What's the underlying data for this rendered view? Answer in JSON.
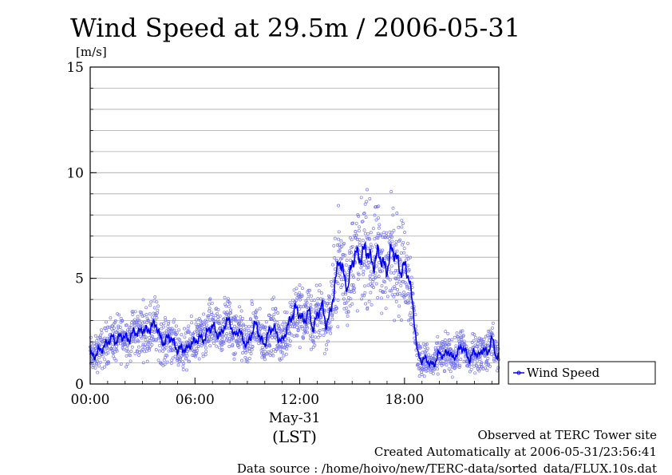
{
  "chart_data": {
    "type": "line",
    "title": "Wind Speed at 29.5m / 2006-05-31",
    "ylabel": "[m/s]",
    "xlabel": "(LST)",
    "date_label": "May-31",
    "ylim": [
      0,
      15
    ],
    "yticks": [
      "0",
      "5",
      "10",
      "15"
    ],
    "xlim": [
      0,
      23.4
    ],
    "xticks": [
      {
        "value": 0,
        "label": "00:00"
      },
      {
        "value": 6,
        "label": "06:00"
      },
      {
        "value": 12,
        "label": "12:00"
      },
      {
        "value": 18,
        "label": "18:00"
      }
    ],
    "grid": true,
    "legend_position": "right",
    "series": [
      {
        "name": "Wind Speed",
        "color": "#0000ee",
        "scatter_color": "#7777ee",
        "x": [
          0.0,
          0.25,
          0.5,
          0.75,
          1.0,
          1.25,
          1.5,
          1.75,
          2.0,
          2.25,
          2.5,
          2.75,
          3.0,
          3.25,
          3.5,
          3.75,
          4.0,
          4.25,
          4.5,
          4.75,
          5.0,
          5.25,
          5.5,
          5.75,
          6.0,
          6.25,
          6.5,
          6.75,
          7.0,
          7.25,
          7.5,
          7.75,
          8.0,
          8.25,
          8.5,
          8.75,
          9.0,
          9.25,
          9.5,
          9.75,
          10.0,
          10.25,
          10.5,
          10.75,
          11.0,
          11.25,
          11.5,
          11.75,
          12.0,
          12.25,
          12.5,
          12.75,
          13.0,
          13.25,
          13.5,
          13.75,
          14.0,
          14.25,
          14.5,
          14.75,
          15.0,
          15.25,
          15.5,
          15.75,
          16.0,
          16.25,
          16.5,
          16.75,
          17.0,
          17.25,
          17.5,
          17.75,
          18.0,
          18.25,
          18.5,
          18.75,
          19.0,
          19.25,
          19.5,
          19.75,
          20.0,
          20.25,
          20.5,
          20.75,
          21.0,
          21.25,
          21.5,
          21.75,
          22.0,
          22.25,
          22.5,
          22.75,
          23.0,
          23.25
        ],
        "values": [
          1.4,
          1.3,
          1.6,
          1.7,
          2.0,
          2.2,
          2.0,
          2.3,
          2.2,
          2.1,
          2.5,
          2.4,
          2.6,
          2.5,
          2.7,
          2.9,
          2.2,
          1.9,
          2.3,
          2.0,
          1.6,
          1.7,
          1.6,
          1.9,
          2.0,
          2.2,
          2.1,
          2.5,
          2.8,
          2.4,
          2.3,
          2.9,
          3.0,
          2.2,
          2.6,
          2.1,
          1.8,
          2.4,
          2.9,
          2.1,
          1.9,
          2.5,
          2.7,
          2.2,
          2.0,
          2.6,
          3.1,
          3.6,
          3.3,
          2.9,
          3.5,
          2.6,
          3.2,
          3.8,
          2.8,
          3.3,
          4.6,
          6.0,
          5.2,
          4.5,
          5.8,
          6.2,
          5.9,
          6.5,
          6.0,
          5.6,
          6.3,
          5.7,
          5.4,
          6.4,
          6.1,
          5.3,
          5.6,
          5.1,
          3.5,
          1.4,
          1.1,
          1.2,
          0.9,
          1.0,
          1.5,
          1.3,
          1.6,
          1.2,
          1.4,
          1.8,
          1.5,
          1.1,
          1.6,
          1.3,
          1.7,
          1.4,
          2.2,
          1.3
        ]
      }
    ]
  },
  "footer": {
    "line1": "Observed at TERC Tower site",
    "line2": "Created Automatically at 2006-05-31/23:56:41",
    "line3": "Data source : /home/hoivo/new/TERC-data/sorted_data/FLUX.10s.dat"
  }
}
